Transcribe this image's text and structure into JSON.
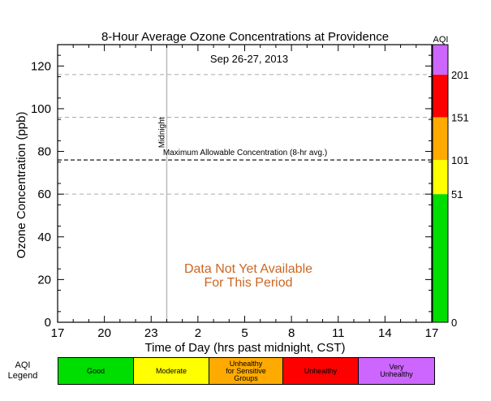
{
  "chart_data": {
    "type": "line",
    "title": "8-Hour Average Ozone Concentrations at Providence",
    "subtitle": "Sep 26-27, 2013",
    "xlabel": "Time of Day (hrs past midnight, CST)",
    "ylabel": "Ozone Concentration (ppb)",
    "ylim": [
      0,
      130
    ],
    "yticks": [
      0,
      20,
      40,
      60,
      80,
      100,
      120
    ],
    "xlim": [
      17,
      41
    ],
    "xticks": [
      {
        "value": 17,
        "label": "17"
      },
      {
        "value": 20,
        "label": "20"
      },
      {
        "value": 23,
        "label": "23"
      },
      {
        "value": 26,
        "label": "2"
      },
      {
        "value": 29,
        "label": "5"
      },
      {
        "value": 32,
        "label": "8"
      },
      {
        "value": 35,
        "label": "11"
      },
      {
        "value": 38,
        "label": "14"
      },
      {
        "value": 41,
        "label": "17"
      }
    ],
    "midnight": {
      "x": 24,
      "label": "Midnight"
    },
    "max_allowable": {
      "value": 76,
      "label": "Maximum Allowable Concentration (8-hr avg.)"
    },
    "aqi_gridlines": [
      60,
      96,
      116
    ],
    "no_data_message": [
      "Data Not Yet Available",
      "For This Period"
    ],
    "series": [],
    "grid": false,
    "aqi_scale": {
      "title": "AQI",
      "bands": [
        {
          "from": 0,
          "to": 60,
          "color": "#00dd00"
        },
        {
          "from": 60,
          "to": 76,
          "color": "#ffff00"
        },
        {
          "from": 76,
          "to": 96,
          "color": "#ffaa00"
        },
        {
          "from": 96,
          "to": 116,
          "color": "#ff0000"
        },
        {
          "from": 116,
          "to": 130,
          "color": "#cc66ff"
        }
      ],
      "labels": [
        {
          "at": 0,
          "text": "0"
        },
        {
          "at": 60,
          "text": "51"
        },
        {
          "at": 76,
          "text": "101"
        },
        {
          "at": 96,
          "text": "151"
        },
        {
          "at": 116,
          "text": "201"
        }
      ]
    }
  },
  "legend": {
    "title_lines": [
      "AQI",
      "Legend"
    ],
    "items": [
      {
        "label": "Good",
        "color": "#00dd00"
      },
      {
        "label": "Moderate",
        "color": "#ffff00"
      },
      {
        "label": "Unhealthy\nfor Sensitive\nGroups",
        "color": "#ffaa00"
      },
      {
        "label": "Unhealthy",
        "color": "#ff0000"
      },
      {
        "label": "Very\nUnhealthy",
        "color": "#cc66ff"
      }
    ]
  },
  "colors": {
    "no_data_text": "#cc6622",
    "gridline": "#aaaaaa",
    "midnight_line": "#bbbbbb"
  }
}
